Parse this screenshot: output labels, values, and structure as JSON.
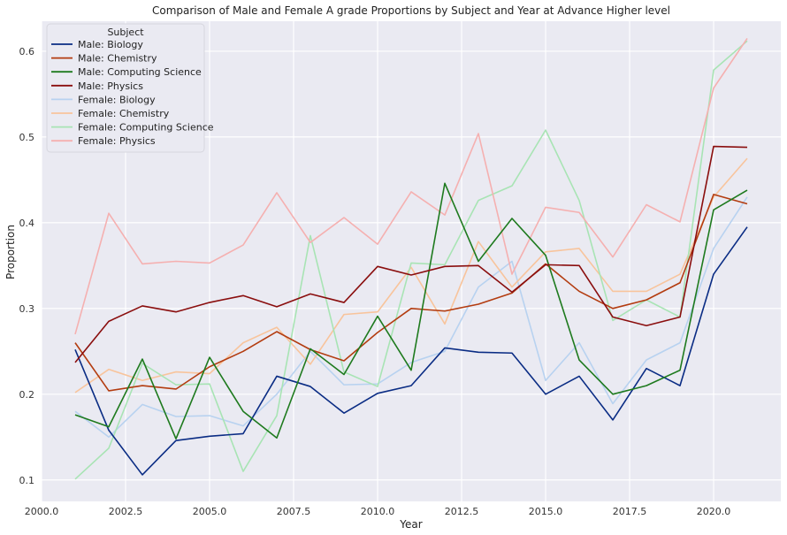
{
  "chart_data": {
    "type": "line",
    "title": "Comparison of Male and Female A grade Proportions by Subject and Year at Advance Higher level",
    "xlabel": "Year",
    "ylabel": "Proportion",
    "xlim": [
      2000,
      2022
    ],
    "ylim": [
      0.075,
      0.635
    ],
    "xticks": [
      2000,
      2002.5,
      2005,
      2007.5,
      2010,
      2012.5,
      2015,
      2017.5,
      2020
    ],
    "xtick_labels": [
      "2000.0",
      "2002.5",
      "2005.0",
      "2007.5",
      "2010.0",
      "2012.5",
      "2015.0",
      "2017.5",
      "2020.0"
    ],
    "yticks": [
      0.1,
      0.2,
      0.3,
      0.4,
      0.5,
      0.6
    ],
    "ytick_labels": [
      "0.1",
      "0.2",
      "0.3",
      "0.4",
      "0.5",
      "0.6"
    ],
    "grid": true,
    "legend": {
      "title": "Subject",
      "placement": "top-left"
    },
    "x": [
      2001,
      2002,
      2003,
      2004,
      2005,
      2006,
      2007,
      2008,
      2009,
      2010,
      2011,
      2012,
      2013,
      2014,
      2015,
      2016,
      2017,
      2018,
      2019,
      2020,
      2021
    ],
    "series": [
      {
        "name": "Male: Biology",
        "color": "#0a2c84",
        "values": [
          0.252,
          0.158,
          0.106,
          0.146,
          0.151,
          0.154,
          0.221,
          0.209,
          0.178,
          0.201,
          0.21,
          0.254,
          0.249,
          0.248,
          0.2,
          0.221,
          0.17,
          0.23,
          0.21,
          0.34,
          0.395
        ]
      },
      {
        "name": "Male: Chemistry",
        "color": "#b33c10",
        "values": [
          0.26,
          0.204,
          0.21,
          0.206,
          0.232,
          0.25,
          0.273,
          0.252,
          0.239,
          0.272,
          0.3,
          0.297,
          0.305,
          0.318,
          0.352,
          0.32,
          0.3,
          0.31,
          0.33,
          0.433,
          0.422
        ]
      },
      {
        "name": "Male: Computing Science",
        "color": "#1e7a1e",
        "values": [
          0.176,
          0.162,
          0.241,
          0.148,
          0.243,
          0.18,
          0.149,
          0.253,
          0.223,
          0.291,
          0.228,
          0.446,
          0.355,
          0.405,
          0.362,
          0.24,
          0.2,
          0.21,
          0.228,
          0.415,
          0.438
        ]
      },
      {
        "name": "Male: Physics",
        "color": "#8a0e0e",
        "values": [
          0.237,
          0.285,
          0.303,
          0.296,
          0.307,
          0.315,
          0.302,
          0.317,
          0.307,
          0.349,
          0.339,
          0.349,
          0.35,
          0.319,
          0.351,
          0.35,
          0.29,
          0.28,
          0.29,
          0.489,
          0.488
        ]
      },
      {
        "name": "Female: Biology",
        "color": "#b8d2f0",
        "values": [
          0.18,
          0.15,
          0.188,
          0.174,
          0.175,
          0.163,
          0.2,
          0.25,
          0.211,
          0.212,
          0.237,
          0.25,
          0.325,
          0.355,
          0.216,
          0.26,
          0.189,
          0.24,
          0.26,
          0.37,
          0.43
        ]
      },
      {
        "name": "Female: Chemistry",
        "color": "#f8c49c",
        "values": [
          0.202,
          0.229,
          0.216,
          0.226,
          0.224,
          0.26,
          0.278,
          0.235,
          0.293,
          0.296,
          0.348,
          0.282,
          0.378,
          0.325,
          0.366,
          0.37,
          0.32,
          0.32,
          0.34,
          0.43,
          0.475
        ]
      },
      {
        "name": "Female: Computing Science",
        "color": "#a8e4b4",
        "values": [
          0.101,
          0.137,
          0.236,
          0.211,
          0.212,
          0.11,
          0.175,
          0.385,
          0.226,
          0.209,
          0.353,
          0.351,
          0.426,
          0.443,
          0.508,
          0.426,
          0.286,
          0.31,
          0.29,
          0.578,
          0.612
        ]
      },
      {
        "name": "Female: Physics",
        "color": "#f5b0b0",
        "values": [
          0.27,
          0.411,
          0.352,
          0.355,
          0.353,
          0.374,
          0.435,
          0.377,
          0.406,
          0.375,
          0.436,
          0.409,
          0.504,
          0.34,
          0.418,
          0.412,
          0.36,
          0.421,
          0.401,
          0.557,
          0.615
        ]
      }
    ]
  }
}
